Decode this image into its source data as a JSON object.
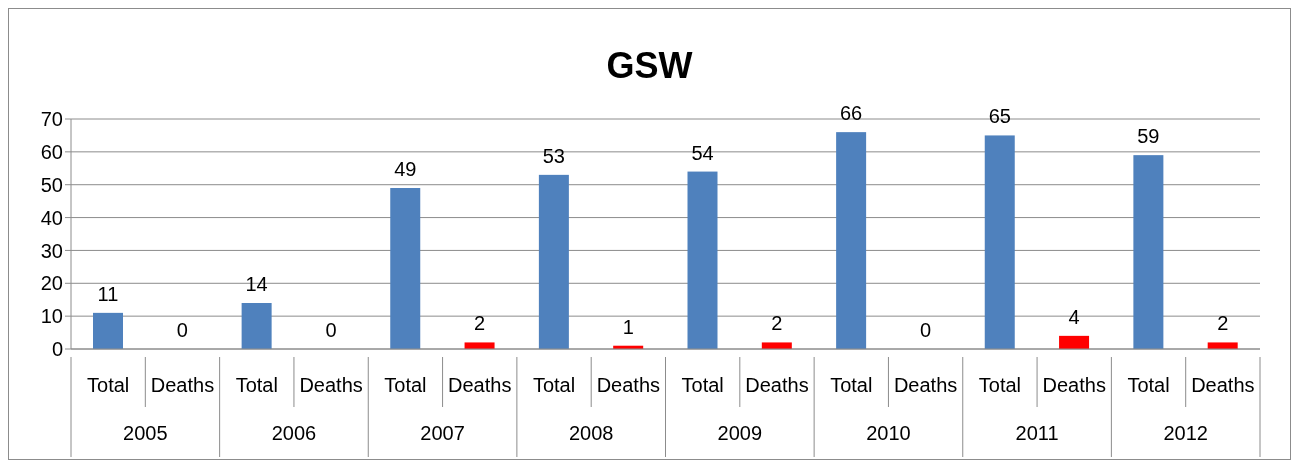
{
  "chart_data": {
    "type": "bar",
    "title": "GSW",
    "categories": [
      "Total",
      "Deaths",
      "Total",
      "Deaths",
      "Total",
      "Deaths",
      "Total",
      "Deaths",
      "Total",
      "Deaths",
      "Total",
      "Deaths",
      "Total",
      "Deaths",
      "Total",
      "Deaths"
    ],
    "values": [
      11,
      0,
      14,
      0,
      49,
      2,
      53,
      1,
      54,
      2,
      66,
      0,
      65,
      4,
      59,
      2
    ],
    "colors": [
      "#4f81bd",
      "#ff0000",
      "#4f81bd",
      "#ff0000",
      "#4f81bd",
      "#ff0000",
      "#4f81bd",
      "#ff0000",
      "#4f81bd",
      "#ff0000",
      "#4f81bd",
      "#ff0000",
      "#4f81bd",
      "#ff0000",
      "#4f81bd",
      "#ff0000"
    ],
    "annotations": [
      "2005",
      "2006",
      "2007",
      "2008",
      "2009",
      "2010",
      "2011",
      "2012"
    ],
    "ylim": [
      0,
      70
    ],
    "yticks": [
      0,
      10,
      20,
      30,
      40,
      50,
      60,
      70
    ],
    "grid": "y",
    "data_labels": true
  }
}
